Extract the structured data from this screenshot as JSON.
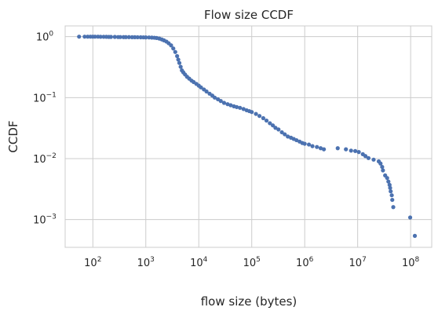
{
  "chart_data": {
    "type": "scatter",
    "title": "Flow size CCDF",
    "xlabel": "flow size (bytes)",
    "ylabel": "CCDF",
    "xscale": "log",
    "yscale": "log",
    "xlim": [
      30,
      250000000
    ],
    "ylim": [
      0.00035,
      1.5
    ],
    "grid": true,
    "marker_color": "#4c72b0",
    "grid_color": "#cccccc",
    "frame_color": "#cccccc",
    "x_ticks": [
      {
        "base": "10",
        "exp": "2",
        "value": 100
      },
      {
        "base": "10",
        "exp": "3",
        "value": 1000
      },
      {
        "base": "10",
        "exp": "4",
        "value": 10000
      },
      {
        "base": "10",
        "exp": "5",
        "value": 100000
      },
      {
        "base": "10",
        "exp": "6",
        "value": 1000000
      },
      {
        "base": "10",
        "exp": "7",
        "value": 10000000
      },
      {
        "base": "10",
        "exp": "8",
        "value": 100000000
      }
    ],
    "y_ticks": [
      {
        "base": "10",
        "exp": "0",
        "value": 1
      },
      {
        "base": "10",
        "exp": "−1",
        "value": 0.1
      },
      {
        "base": "10",
        "exp": "−2",
        "value": 0.01
      },
      {
        "base": "10",
        "exp": "−3",
        "value": 0.001
      }
    ],
    "series": [
      {
        "points": [
          [
            55,
            1.0
          ],
          [
            70,
            1.0
          ],
          [
            80,
            1.0
          ],
          [
            90,
            1.0
          ],
          [
            100,
            1.0
          ],
          [
            110,
            1.0
          ],
          [
            125,
            1.0
          ],
          [
            140,
            0.995
          ],
          [
            160,
            0.995
          ],
          [
            180,
            0.993
          ],
          [
            200,
            0.99
          ],
          [
            220,
            0.99
          ],
          [
            260,
            0.99
          ],
          [
            300,
            0.985
          ],
          [
            330,
            0.985
          ],
          [
            380,
            0.983
          ],
          [
            420,
            0.982
          ],
          [
            480,
            0.982
          ],
          [
            550,
            0.98
          ],
          [
            620,
            0.98
          ],
          [
            700,
            0.978
          ],
          [
            800,
            0.976
          ],
          [
            900,
            0.974
          ],
          [
            1000,
            0.972
          ],
          [
            1150,
            0.97
          ],
          [
            1300,
            0.965
          ],
          [
            1450,
            0.96
          ],
          [
            1600,
            0.95
          ],
          [
            1800,
            0.93
          ],
          [
            2000,
            0.9
          ],
          [
            2200,
            0.87
          ],
          [
            2450,
            0.83
          ],
          [
            2700,
            0.78
          ],
          [
            3000,
            0.72
          ],
          [
            3300,
            0.64
          ],
          [
            3600,
            0.56
          ],
          [
            3900,
            0.48
          ],
          [
            4100,
            0.42
          ],
          [
            4300,
            0.37
          ],
          [
            4550,
            0.32
          ],
          [
            4800,
            0.28
          ],
          [
            5100,
            0.26
          ],
          [
            5500,
            0.24
          ],
          [
            6000,
            0.22
          ],
          [
            6600,
            0.205
          ],
          [
            7300,
            0.19
          ],
          [
            8000,
            0.18
          ],
          [
            9000,
            0.168
          ],
          [
            10000,
            0.157
          ],
          [
            11000,
            0.147
          ],
          [
            12500,
            0.136
          ],
          [
            14000,
            0.126
          ],
          [
            16000,
            0.116
          ],
          [
            18000,
            0.108
          ],
          [
            20000,
            0.1
          ],
          [
            23000,
            0.094
          ],
          [
            26000,
            0.088
          ],
          [
            30000,
            0.082
          ],
          [
            35000,
            0.078
          ],
          [
            40000,
            0.075
          ],
          [
            46000,
            0.072
          ],
          [
            52000,
            0.07
          ],
          [
            60000,
            0.068
          ],
          [
            70000,
            0.065
          ],
          [
            80000,
            0.062
          ],
          [
            90000,
            0.06
          ],
          [
            100000,
            0.058
          ],
          [
            120000,
            0.054
          ],
          [
            140000,
            0.05
          ],
          [
            165000,
            0.046
          ],
          [
            190000,
            0.042
          ],
          [
            220000,
            0.038
          ],
          [
            250000,
            0.035
          ],
          [
            280000,
            0.032
          ],
          [
            320000,
            0.03
          ],
          [
            370000,
            0.027
          ],
          [
            420000,
            0.025
          ],
          [
            480000,
            0.023
          ],
          [
            550000,
            0.022
          ],
          [
            620000,
            0.021
          ],
          [
            700000,
            0.02
          ],
          [
            800000,
            0.019
          ],
          [
            900000,
            0.018
          ],
          [
            1000000,
            0.0175
          ],
          [
            1200000,
            0.017
          ],
          [
            1400000,
            0.016
          ],
          [
            1700000,
            0.0155
          ],
          [
            2000000,
            0.0148
          ],
          [
            2300000,
            0.0142
          ],
          [
            4200000,
            0.0148
          ],
          [
            6000000,
            0.0142
          ],
          [
            7500000,
            0.0135
          ],
          [
            9000000,
            0.0133
          ],
          [
            10500000,
            0.0128
          ],
          [
            12500000,
            0.0118
          ],
          [
            14000000,
            0.011
          ],
          [
            16000000,
            0.0102
          ],
          [
            20000000,
            0.0096
          ],
          [
            25000000,
            0.009
          ],
          [
            27000000,
            0.0083
          ],
          [
            29000000,
            0.0073
          ],
          [
            30000000,
            0.0064
          ],
          [
            33000000,
            0.0053
          ],
          [
            36000000,
            0.0048
          ],
          [
            38000000,
            0.0042
          ],
          [
            40000000,
            0.0037
          ],
          [
            41000000,
            0.0033
          ],
          [
            42000000,
            0.0029
          ],
          [
            44000000,
            0.0025
          ],
          [
            45000000,
            0.0021
          ],
          [
            47000000,
            0.0016
          ],
          [
            98000000,
            0.00108
          ],
          [
            120000000,
            0.00054
          ]
        ]
      }
    ]
  }
}
